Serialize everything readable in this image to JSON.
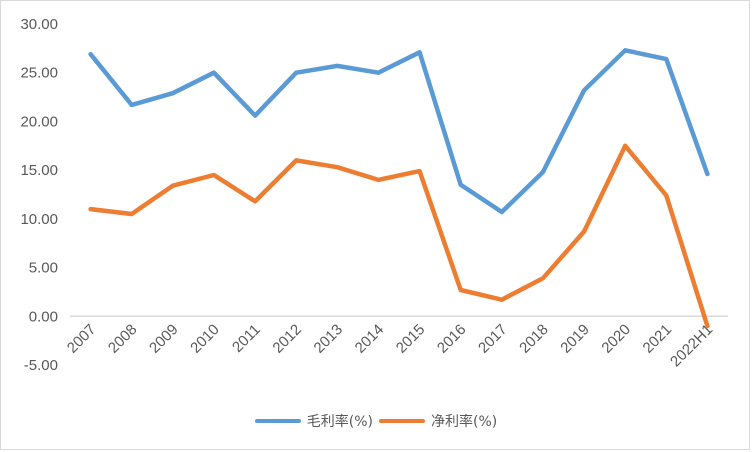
{
  "chart_data": {
    "type": "line",
    "title": "",
    "xlabel": "",
    "ylabel": "",
    "categories": [
      "2007",
      "2008",
      "2009",
      "2010",
      "2011",
      "2012",
      "2013",
      "2014",
      "2015",
      "2016",
      "2017",
      "2018",
      "2019",
      "2020",
      "2021",
      "2022H1"
    ],
    "series": [
      {
        "name": "毛利率(%)",
        "color": "#5B9BD5",
        "values": [
          26.9,
          21.7,
          22.9,
          25.0,
          20.6,
          25.0,
          25.7,
          25.0,
          27.1,
          13.5,
          10.7,
          14.8,
          23.2,
          27.3,
          26.4,
          14.6
        ]
      },
      {
        "name": "净利率(%)",
        "color": "#ED7D31",
        "values": [
          11.0,
          10.5,
          13.4,
          14.5,
          11.8,
          16.0,
          15.3,
          14.0,
          14.9,
          2.7,
          1.7,
          3.9,
          8.7,
          17.5,
          12.4,
          -1.0
        ]
      }
    ],
    "ylim": [
      -5,
      30
    ],
    "yticks": [
      "30.00",
      "25.00",
      "20.00",
      "15.00",
      "10.00",
      "5.00",
      "0.00",
      "-5.00"
    ],
    "grid": false,
    "legend_position": "bottom"
  },
  "legend": {
    "items": [
      {
        "label": "毛利率(%)",
        "color": "#5B9BD5"
      },
      {
        "label": "净利率(%)",
        "color": "#ED7D31"
      }
    ]
  }
}
